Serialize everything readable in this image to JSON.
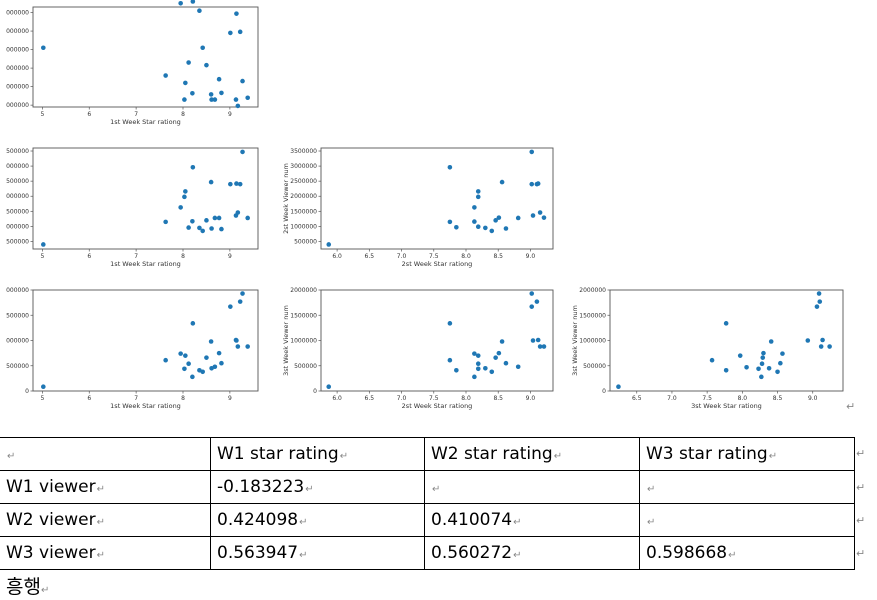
{
  "chart_data": [
    {
      "id": "w1r_w1v",
      "type": "scatter",
      "title": "",
      "xlabel": "1st Week Star rationg",
      "ylabel": "",
      "xlim": [
        4.8,
        9.6
      ],
      "ylim": [
        1050000,
        3750000
      ],
      "xticks": [
        5,
        6,
        7,
        8,
        9
      ],
      "yticks": [
        1100000,
        1600000,
        2100000,
        2600000,
        3100000,
        3600000
      ],
      "ytick_labels": [
        "000000",
        "000000",
        "000000",
        "000000",
        "000000",
        "000000"
      ],
      "color": "#1f77b4",
      "x": [
        5.02,
        7.63,
        7.95,
        8.03,
        8.05,
        8.12,
        8.2,
        8.21,
        8.35,
        8.42,
        8.5,
        8.6,
        8.61,
        8.68,
        8.77,
        8.82,
        9.01,
        9.13,
        9.14,
        9.17,
        9.22,
        9.27,
        9.38
      ],
      "y": [
        2650000,
        1900000,
        3850000,
        1250000,
        1700000,
        2250000,
        1420000,
        3900000,
        3650000,
        2650000,
        2180000,
        1390000,
        1250000,
        1250000,
        1800000,
        1430000,
        3050000,
        1250000,
        3570000,
        1080000,
        3080000,
        1750000,
        1300000
      ]
    },
    {
      "id": "w1r_w2v",
      "type": "scatter",
      "xlabel": "1st Week Star rationg",
      "ylabel": "",
      "xlim": [
        4.8,
        9.6
      ],
      "ylim": [
        250000,
        3600000
      ],
      "xticks": [
        5,
        6,
        7,
        8,
        9
      ],
      "yticks": [
        500000,
        1000000,
        1500000,
        2000000,
        2500000,
        3000000,
        3500000
      ],
      "ytick_labels": [
        "500000",
        "000000",
        "500000",
        "000000",
        "500000",
        "000000",
        "500000"
      ],
      "color": "#1f77b4",
      "x": [
        5.02,
        7.63,
        7.95,
        8.03,
        8.05,
        8.12,
        8.2,
        8.21,
        8.35,
        8.42,
        8.5,
        8.6,
        8.61,
        8.68,
        8.77,
        8.82,
        9.01,
        9.13,
        9.14,
        9.17,
        9.22,
        9.27,
        9.38
      ],
      "y": [
        400000,
        1150000,
        1630000,
        1980000,
        2160000,
        960000,
        1170000,
        2960000,
        950000,
        850000,
        1200000,
        2470000,
        930000,
        1280000,
        1280000,
        910000,
        2400000,
        1360000,
        2420000,
        1460000,
        2400000,
        3470000,
        1280000
      ]
    },
    {
      "id": "w2r_w2v",
      "type": "scatter",
      "xlabel": "2st Week Star rationg",
      "ylabel": "2st Week Viewer num",
      "xlim": [
        5.75,
        9.35
      ],
      "ylim": [
        250000,
        3600000
      ],
      "xticks": [
        6.0,
        6.5,
        7.0,
        7.5,
        8.0,
        8.5,
        9.0
      ],
      "xtick_labels": [
        "6.0",
        "6.5",
        "7.0",
        "7.5",
        "8.0",
        "8.5",
        "9.0"
      ],
      "yticks": [
        500000,
        1000000,
        1500000,
        2000000,
        2500000,
        3000000,
        3500000
      ],
      "ytick_labels": [
        "500000",
        "1000000",
        "1500000",
        "2000000",
        "2500000",
        "3000000",
        "3500000"
      ],
      "color": "#1f77b4",
      "x": [
        5.87,
        7.75,
        7.75,
        7.85,
        8.13,
        8.13,
        8.19,
        8.19,
        8.19,
        8.3,
        8.4,
        8.46,
        8.51,
        8.56,
        8.62,
        8.81,
        9.02,
        9.02,
        9.04,
        9.1,
        9.12,
        9.15,
        9.21
      ],
      "y": [
        400000,
        2960000,
        1150000,
        970000,
        1630000,
        1160000,
        2160000,
        1980000,
        990000,
        950000,
        850000,
        1200000,
        1290000,
        2470000,
        930000,
        1280000,
        3470000,
        2400000,
        1360000,
        2400000,
        2420000,
        1460000,
        1290000
      ]
    },
    {
      "id": "w1r_w3v",
      "type": "scatter",
      "xlabel": "1st Week Star rationg",
      "ylabel": "",
      "xlim": [
        4.8,
        9.6
      ],
      "ylim": [
        0,
        2000000
      ],
      "xticks": [
        5,
        6,
        7,
        8,
        9
      ],
      "yticks": [
        0,
        500000,
        1000000,
        1500000,
        2000000
      ],
      "ytick_labels": [
        "0",
        "500000",
        "000000",
        "500000",
        "000000"
      ],
      "color": "#1f77b4",
      "x": [
        5.02,
        7.63,
        7.95,
        8.03,
        8.05,
        8.12,
        8.2,
        8.21,
        8.35,
        8.42,
        8.5,
        8.6,
        8.61,
        8.68,
        8.77,
        8.82,
        9.01,
        9.13,
        9.14,
        9.17,
        9.22,
        9.27,
        9.38
      ],
      "y": [
        85000,
        610000,
        740000,
        440000,
        700000,
        540000,
        280000,
        1340000,
        410000,
        380000,
        660000,
        980000,
        450000,
        480000,
        750000,
        550000,
        1670000,
        1010000,
        1000000,
        880000,
        1770000,
        1930000,
        880000
      ]
    },
    {
      "id": "w2r_w3v",
      "type": "scatter",
      "xlabel": "2st Week Star rationg",
      "ylabel": "3st Week Viewer num",
      "xlim": [
        5.75,
        9.35
      ],
      "ylim": [
        0,
        2000000
      ],
      "xticks": [
        6.0,
        6.5,
        7.0,
        7.5,
        8.0,
        8.5,
        9.0
      ],
      "xtick_labels": [
        "6.0",
        "6.5",
        "7.0",
        "7.5",
        "8.0",
        "8.5",
        "9.0"
      ],
      "yticks": [
        0,
        500000,
        1000000,
        1500000,
        2000000
      ],
      "ytick_labels": [
        "0",
        "500000",
        "1000000",
        "1500000",
        "2000000"
      ],
      "color": "#1f77b4",
      "x": [
        5.87,
        7.75,
        7.75,
        7.85,
        8.13,
        8.13,
        8.19,
        8.19,
        8.19,
        8.3,
        8.4,
        8.46,
        8.51,
        8.56,
        8.62,
        8.81,
        9.02,
        9.02,
        9.04,
        9.1,
        9.12,
        9.15,
        9.21
      ],
      "y": [
        85000,
        1340000,
        610000,
        410000,
        740000,
        280000,
        700000,
        540000,
        440000,
        450000,
        380000,
        660000,
        750000,
        980000,
        550000,
        480000,
        1930000,
        1670000,
        1000000,
        1770000,
        1010000,
        880000,
        880000
      ]
    },
    {
      "id": "w3r_w3v",
      "type": "scatter",
      "xlabel": "3st Week Star rationg",
      "ylabel": "3st Week Viewer num",
      "xlim": [
        6.12,
        9.43
      ],
      "ylim": [
        0,
        2000000
      ],
      "xticks": [
        6.5,
        7.0,
        7.5,
        8.0,
        8.5,
        9.0
      ],
      "xtick_labels": [
        "6.5",
        "7.0",
        "7.5",
        "8.0",
        "8.5",
        "9.0"
      ],
      "yticks": [
        0,
        500000,
        1000000,
        1500000,
        2000000
      ],
      "ytick_labels": [
        "0",
        "500000",
        "1000000",
        "1500000",
        "2000000"
      ],
      "color": "#1f77b4",
      "x": [
        6.24,
        7.57,
        7.77,
        7.77,
        7.97,
        8.06,
        8.23,
        8.27,
        8.28,
        8.29,
        8.3,
        8.38,
        8.41,
        8.5,
        8.54,
        8.57,
        8.93,
        9.06,
        9.09,
        9.1,
        9.12,
        9.14,
        9.24
      ],
      "y": [
        85000,
        610000,
        1340000,
        410000,
        700000,
        470000,
        440000,
        280000,
        540000,
        660000,
        750000,
        450000,
        980000,
        380000,
        550000,
        740000,
        1000000,
        1670000,
        1930000,
        1770000,
        880000,
        1010000,
        880000
      ]
    }
  ],
  "table": {
    "headers": [
      "",
      "W1 star rating",
      "W2 star rating",
      "W3 star rating"
    ],
    "rows": [
      {
        "label": "W1 viewer",
        "cells": [
          "-0.183223",
          "",
          ""
        ]
      },
      {
        "label": "W2 viewer",
        "cells": [
          "0.424098",
          "0.410074",
          ""
        ]
      },
      {
        "label": "W3 viewer",
        "cells": [
          "0.563947",
          "0.560272",
          "0.598668"
        ]
      }
    ]
  },
  "footer": {
    "text": "흥행"
  },
  "paragraph_mark": "↵"
}
